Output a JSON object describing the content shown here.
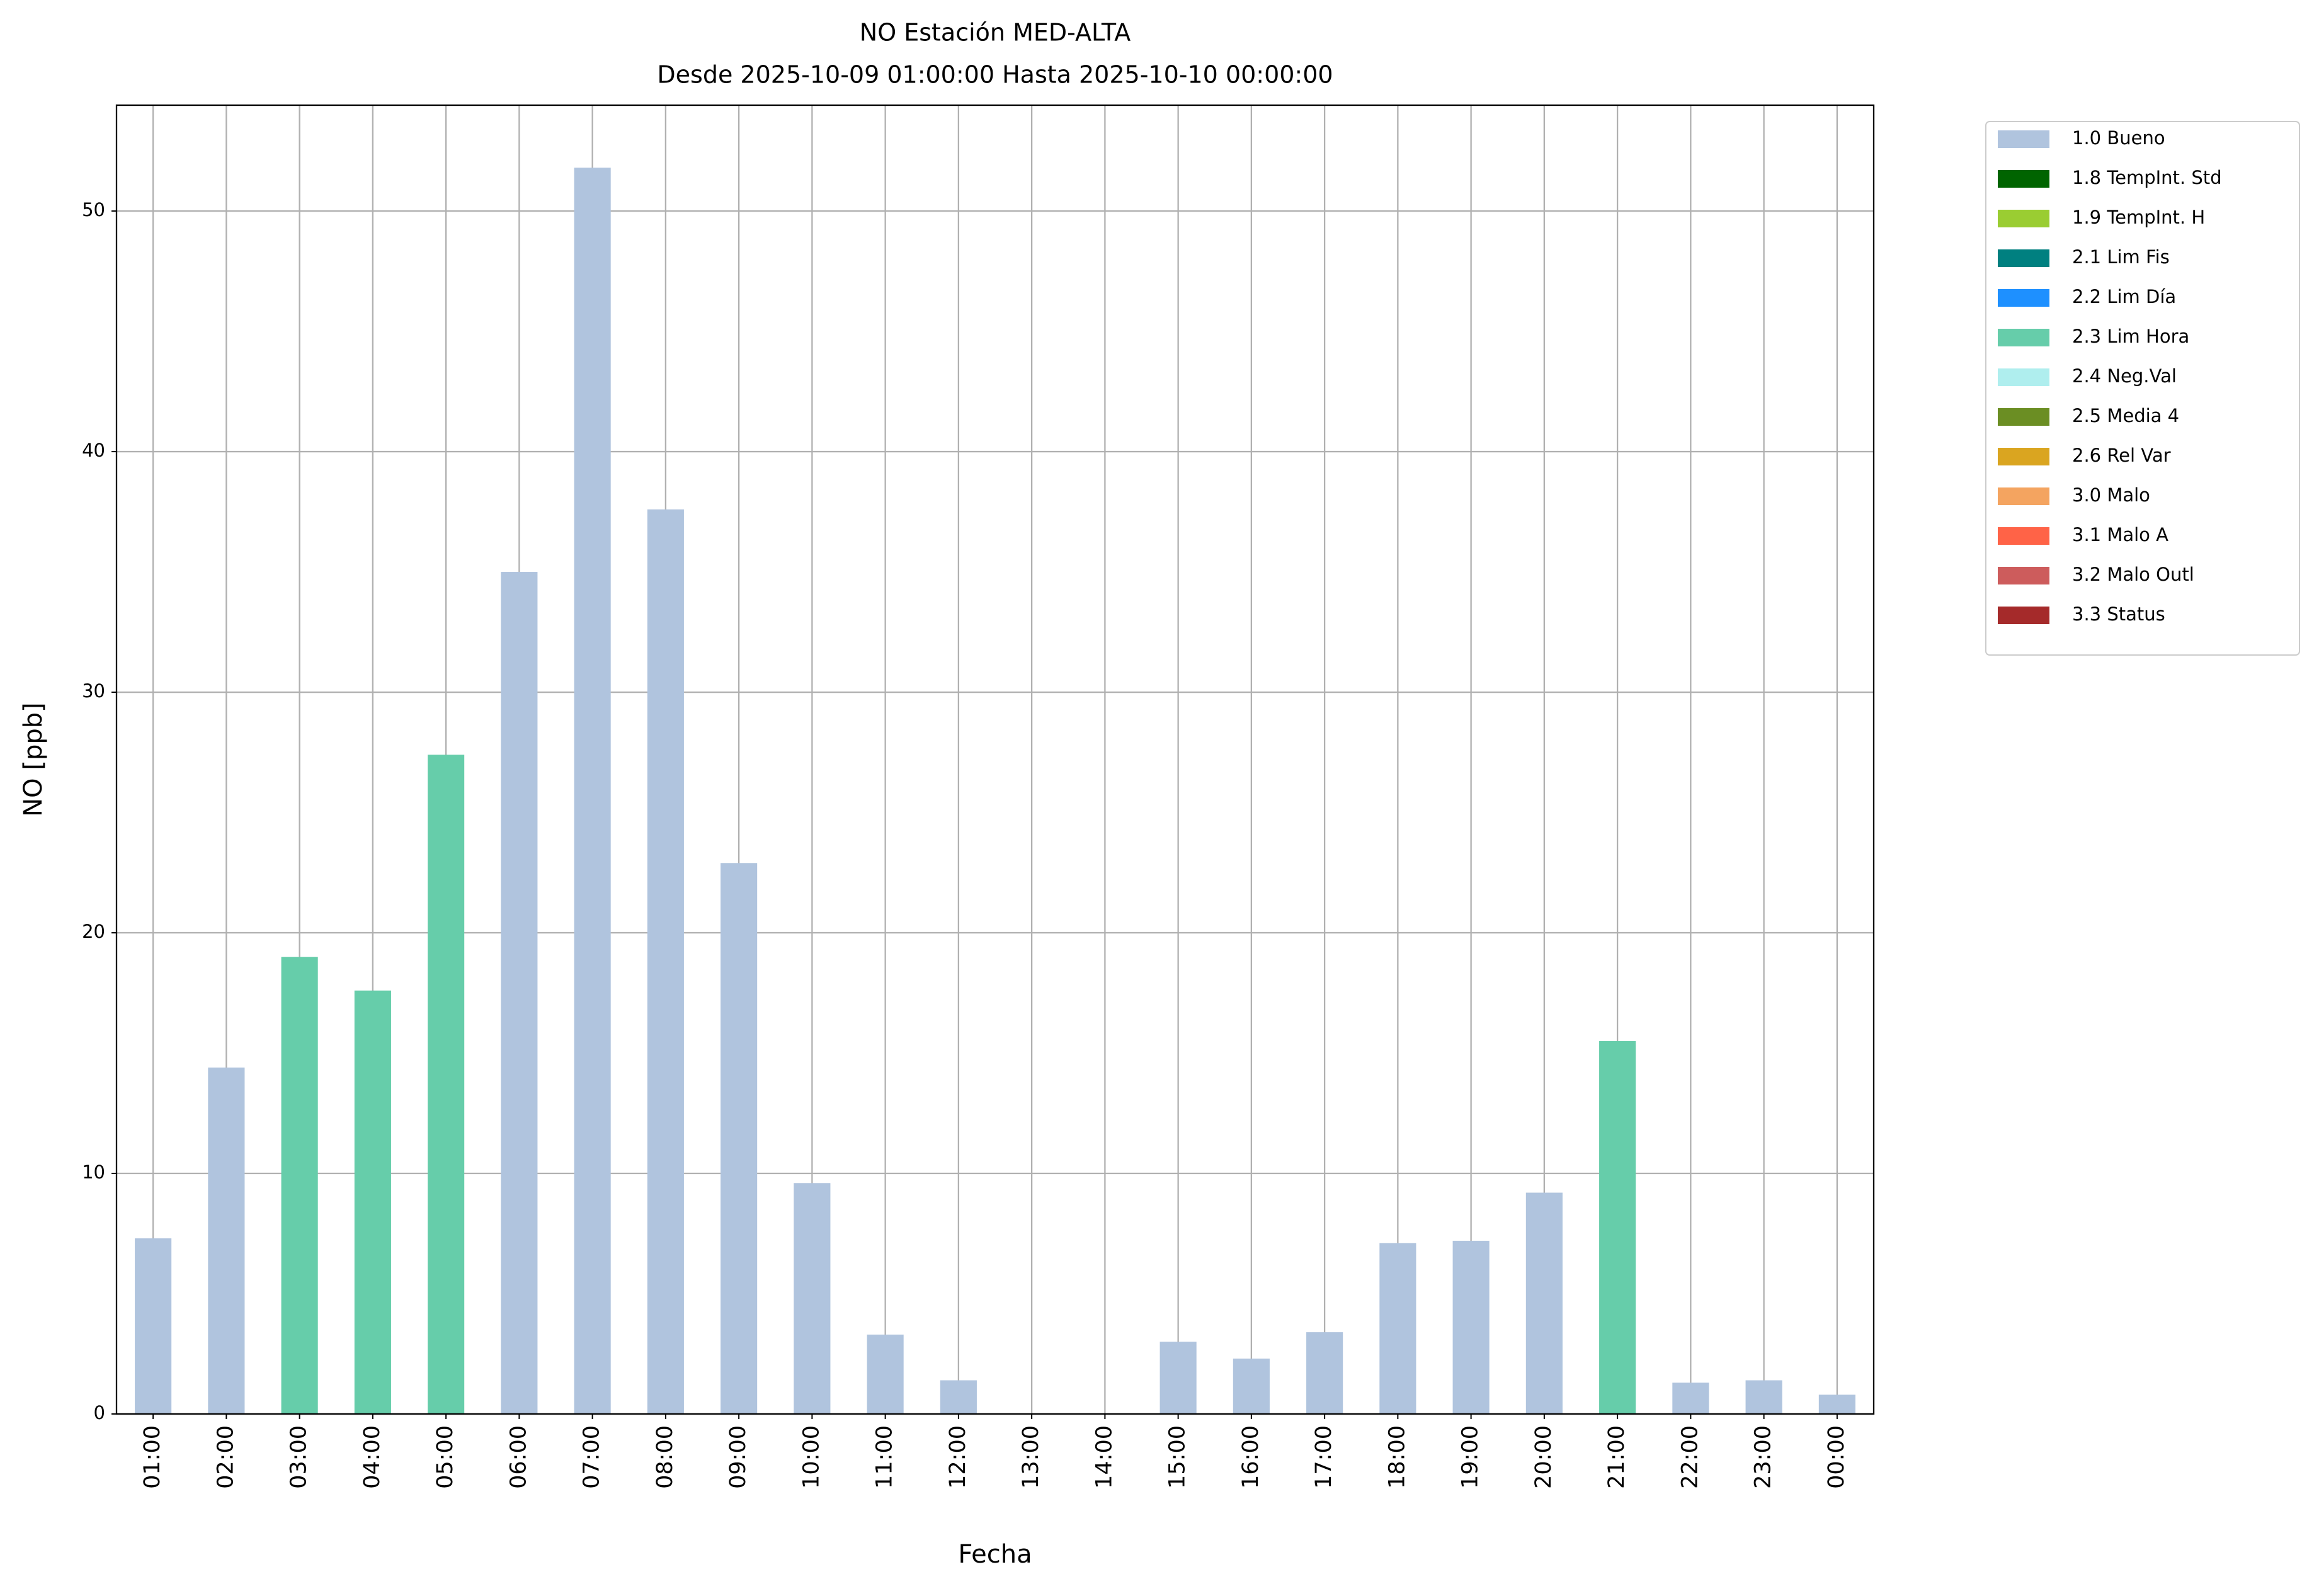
{
  "chart_data": {
    "type": "bar",
    "stacked": true,
    "title": "NO Estación MED-ALTA",
    "subtitle": "Desde 2025-10-09 01:00:00 Hasta 2025-10-10 00:00:00",
    "x_label": "Fecha",
    "y_label": "NO [ppb]",
    "categories": [
      "01:00",
      "02:00",
      "03:00",
      "04:00",
      "05:00",
      "06:00",
      "07:00",
      "08:00",
      "09:00",
      "10:00",
      "11:00",
      "12:00",
      "13:00",
      "14:00",
      "15:00",
      "16:00",
      "17:00",
      "18:00",
      "19:00",
      "20:00",
      "21:00",
      "22:00",
      "23:00",
      "00:00"
    ],
    "series": [
      {
        "name": "1.0 Bueno",
        "color": "#b0c4de",
        "values": [
          7.3,
          14.4,
          null,
          null,
          null,
          35.0,
          51.8,
          37.6,
          22.9,
          9.6,
          3.3,
          1.4,
          null,
          null,
          3.0,
          2.3,
          3.4,
          7.1,
          7.2,
          9.2,
          null,
          1.3,
          1.4,
          0.8
        ]
      },
      {
        "name": "1.8 TempInt. Std",
        "color": "#006400",
        "values": [
          null,
          null,
          null,
          null,
          null,
          null,
          null,
          null,
          null,
          null,
          null,
          null,
          null,
          null,
          null,
          null,
          null,
          null,
          null,
          null,
          null,
          null,
          null,
          null
        ]
      },
      {
        "name": "1.9 TempInt. H",
        "color": "#9acd32",
        "values": [
          null,
          null,
          null,
          null,
          null,
          null,
          null,
          null,
          null,
          null,
          null,
          null,
          null,
          null,
          null,
          null,
          null,
          null,
          null,
          null,
          null,
          null,
          null,
          null
        ]
      },
      {
        "name": "2.1 Lim Fis",
        "color": "#008080",
        "values": [
          null,
          null,
          null,
          null,
          null,
          null,
          null,
          null,
          null,
          null,
          null,
          null,
          null,
          null,
          null,
          null,
          null,
          null,
          null,
          null,
          null,
          null,
          null,
          null
        ]
      },
      {
        "name": "2.2 Lim Día",
        "color": "#1e90ff",
        "values": [
          null,
          null,
          null,
          null,
          null,
          null,
          null,
          null,
          null,
          null,
          null,
          null,
          null,
          null,
          null,
          null,
          null,
          null,
          null,
          null,
          null,
          null,
          null,
          null
        ]
      },
      {
        "name": "2.3 Lim Hora",
        "color": "#66cdaa",
        "values": [
          null,
          null,
          19.0,
          17.6,
          27.4,
          null,
          null,
          null,
          null,
          null,
          null,
          null,
          null,
          null,
          null,
          null,
          null,
          null,
          null,
          null,
          15.5,
          null,
          null,
          null
        ]
      },
      {
        "name": "2.4 Neg.Val",
        "color": "#afeeee",
        "values": [
          null,
          null,
          null,
          null,
          null,
          null,
          null,
          null,
          null,
          null,
          null,
          null,
          null,
          null,
          null,
          null,
          null,
          null,
          null,
          null,
          null,
          null,
          null,
          null
        ]
      },
      {
        "name": "2.5 Media 4",
        "color": "#6b8e23",
        "values": [
          null,
          null,
          null,
          null,
          null,
          null,
          null,
          null,
          null,
          null,
          null,
          null,
          null,
          null,
          null,
          null,
          null,
          null,
          null,
          null,
          null,
          null,
          null,
          null
        ]
      },
      {
        "name": "2.6 Rel Var",
        "color": "#daa520",
        "values": [
          null,
          null,
          null,
          null,
          null,
          null,
          null,
          null,
          null,
          null,
          null,
          null,
          null,
          null,
          null,
          null,
          null,
          null,
          null,
          null,
          null,
          null,
          null,
          null
        ]
      },
      {
        "name": "3.0 Malo",
        "color": "#f4a460",
        "values": [
          null,
          null,
          null,
          null,
          null,
          null,
          null,
          null,
          null,
          null,
          null,
          null,
          null,
          null,
          null,
          null,
          null,
          null,
          null,
          null,
          null,
          null,
          null,
          null
        ]
      },
      {
        "name": "3.1 Malo A",
        "color": "#ff6347",
        "values": [
          null,
          null,
          null,
          null,
          null,
          null,
          null,
          null,
          null,
          null,
          null,
          null,
          null,
          null,
          null,
          null,
          null,
          null,
          null,
          null,
          null,
          null,
          null,
          null
        ]
      },
      {
        "name": "3.2 Malo Outl",
        "color": "#cd5c5c",
        "values": [
          null,
          null,
          null,
          null,
          null,
          null,
          null,
          null,
          null,
          null,
          null,
          null,
          null,
          null,
          null,
          null,
          null,
          null,
          null,
          null,
          null,
          null,
          null,
          null
        ]
      },
      {
        "name": "3.3 Status",
        "color": "#a52a2a",
        "values": [
          null,
          null,
          null,
          null,
          null,
          null,
          null,
          null,
          null,
          null,
          null,
          null,
          null,
          null,
          null,
          null,
          null,
          null,
          null,
          null,
          null,
          null,
          null,
          null
        ]
      }
    ],
    "ylim": [
      0,
      54.4
    ],
    "yticks": [
      0,
      10,
      20,
      30,
      40,
      50
    ],
    "grid": true,
    "legend": "outside-upper-right"
  }
}
